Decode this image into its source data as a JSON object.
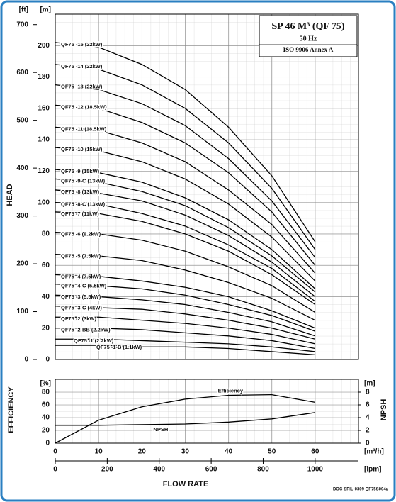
{
  "chart_data": [
    {
      "type": "line",
      "title": "SP 46 M³ (QF 75)",
      "subtitle": "50 Hz",
      "standard": "ISO 9906 Annex A",
      "ylabel": "HEAD",
      "yunit": "[m]",
      "y2unit": "[ft]",
      "xlim": [
        0,
        70
      ],
      "ylim": [
        0,
        220
      ],
      "yticks": [
        0,
        20,
        40,
        60,
        80,
        100,
        120,
        140,
        160,
        180,
        200
      ],
      "y2lim": [
        0,
        721.8
      ],
      "y2ticks": [
        0,
        100,
        200,
        300,
        400,
        500,
        600,
        700
      ],
      "grid": true,
      "color": "#000000",
      "x": [
        0,
        10,
        20,
        30,
        40,
        50,
        60
      ],
      "series": [
        {
          "name": "QF75 -15 (22kW)",
          "values": [
            202,
            199,
            188,
            172,
            148,
            117,
            75
          ]
        },
        {
          "name": "QF75 -14 (22kW)",
          "values": [
            188,
            185,
            175,
            160,
            138,
            109,
            70
          ]
        },
        {
          "name": "QF75 -13 (22kW)",
          "values": [
            175,
            172,
            163,
            149,
            128,
            101,
            65
          ]
        },
        {
          "name": "QF75 -12 (18.5kW)",
          "values": [
            162,
            160,
            151,
            138,
            119,
            94,
            60
          ]
        },
        {
          "name": "QF75 -11 (18.5kW)",
          "values": [
            148,
            146,
            138,
            126,
            108,
            86,
            55
          ]
        },
        {
          "name": "QF75 -10 (15kW)",
          "values": [
            135,
            133,
            126,
            115,
            99,
            78,
            50
          ]
        },
        {
          "name": "QF75 -9 (15kW)",
          "values": [
            121,
            119,
            113,
            103,
            89,
            70,
            45
          ]
        },
        {
          "name": "QF75 -9-C (13kW)",
          "values": [
            115,
            113,
            107,
            98,
            84,
            66,
            43
          ]
        },
        {
          "name": "QF75 -8 (13kW)",
          "values": [
            108,
            106,
            101,
            92,
            79,
            62,
            40
          ]
        },
        {
          "name": "QF75 -8-C (13kW)",
          "values": [
            100,
            99,
            93,
            85,
            73,
            58,
            37
          ]
        },
        {
          "name": "QF75 -7 (11kW)",
          "values": [
            94,
            93,
            88,
            80,
            69,
            54,
            35
          ]
        },
        {
          "name": "QF75 -6 (9.2kW)",
          "values": [
            81,
            80,
            76,
            69,
            59,
            47,
            30
          ]
        },
        {
          "name": "QF75 -5 (7.5kW)",
          "values": [
            67,
            66,
            63,
            57,
            49,
            39,
            25
          ]
        },
        {
          "name": "QF75 -4 (7.5kW)",
          "values": [
            54,
            53,
            50,
            46,
            40,
            31,
            20
          ]
        },
        {
          "name": "QF75 -4-C (5.5kW)",
          "values": [
            48,
            47,
            45,
            41,
            35,
            28,
            18
          ]
        },
        {
          "name": "QF75 -3 (5.5kW)",
          "values": [
            41,
            40,
            38,
            35,
            30,
            24,
            15
          ]
        },
        {
          "name": "QF75 -3-C (4kW)",
          "values": [
            34,
            33,
            32,
            29,
            25,
            20,
            13
          ]
        },
        {
          "name": "QF75 -2 (3kW)",
          "values": [
            27,
            27,
            25,
            23,
            20,
            16,
            10
          ]
        },
        {
          "name": "QF75 -2-BB (2.2kW)",
          "values": [
            20,
            20,
            19,
            17,
            15,
            12,
            7
          ]
        },
        {
          "name": "QF75 -1 (2.2kW)",
          "values": [
            13,
            13,
            12,
            11,
            10,
            8,
            5
          ]
        },
        {
          "name": "QF75 -1-B (1.1kW)",
          "values": [
            9,
            9,
            8,
            8,
            7,
            5,
            3
          ]
        }
      ]
    },
    {
      "type": "line",
      "ylabel": "EFFICIENCY",
      "yunit": "[%]",
      "y2label": "NPSH",
      "y2unit": "[m]",
      "xlabel": "FLOW RATE",
      "xunit": "[m³/h]",
      "x2unit": "[lpm]",
      "xlim": [
        0,
        70
      ],
      "xticks": [
        0,
        10,
        20,
        30,
        40,
        50,
        60
      ],
      "x2lim": [
        0,
        1166.7
      ],
      "x2ticks": [
        0,
        200,
        400,
        600,
        800,
        1000
      ],
      "ylim": [
        0,
        100
      ],
      "yticks": [
        0,
        20,
        40,
        60,
        80
      ],
      "y2lim": [
        0,
        10
      ],
      "y2ticks": [
        0,
        2,
        4,
        6,
        8
      ],
      "grid": true,
      "x": [
        0,
        10,
        20,
        30,
        40,
        50,
        60
      ],
      "series": [
        {
          "name": "Efficiency",
          "color": "#000000",
          "values": [
            0,
            36,
            57,
            69,
            75,
            76,
            64
          ]
        },
        {
          "name": "NPSH",
          "color": "#000000",
          "axis": "y2",
          "values": [
            2.8,
            2.8,
            2.9,
            3.0,
            3.3,
            3.8,
            4.8
          ]
        }
      ]
    }
  ],
  "footer": "DOC-SPIL-0309 QF75S004a"
}
